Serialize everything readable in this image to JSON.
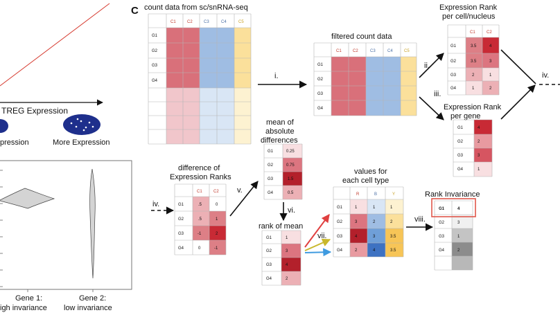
{
  "panel_letter": "C",
  "left_partial": {
    "axis_label": "TREG Expression",
    "less_label": "pression",
    "more_label": "More Expression",
    "gene1_label": "Gene 1:",
    "gene1_sub": "igh invariance",
    "gene2_label": "Gene 2:",
    "gene2_sub": "low invariance"
  },
  "colors": {
    "red": "#d9707a",
    "red_light": "#f1c6cb",
    "blue": "#9fbde3",
    "blue_light": "#d9e6f5",
    "yellow": "#fbe09b",
    "yellow_light": "#fdf2d1",
    "ellipse": "#1e2f8c",
    "violin": "#d4d4d4"
  },
  "count_data": {
    "title": "count data from sc/snRNA-seq",
    "columns": [
      "C1",
      "C2",
      "C3",
      "C4",
      "C5"
    ],
    "rows": [
      "G1",
      "G2",
      "G3",
      "G4"
    ]
  },
  "filtered": {
    "title": "filtered count data",
    "columns": [
      "C1",
      "C2",
      "C3",
      "C4",
      "C5"
    ],
    "rows": [
      "G1",
      "G2",
      "G3",
      "G4"
    ]
  },
  "rank_cell": {
    "title1": "Expression Rank",
    "title2": "per cell/nucleus",
    "columns": [
      "C1",
      "C2"
    ],
    "rows": [
      {
        "gene": "G1",
        "values": [
          "3.5",
          "4"
        ]
      },
      {
        "gene": "G2",
        "values": [
          "3.5",
          "3"
        ]
      },
      {
        "gene": "G3",
        "values": [
          "2",
          "1"
        ]
      },
      {
        "gene": "G4",
        "values": [
          "1",
          "2"
        ]
      }
    ]
  },
  "rank_gene": {
    "title1": "Expression Rank",
    "title2": "per gene",
    "rows": [
      {
        "gene": "G1",
        "value": "4"
      },
      {
        "gene": "G2",
        "value": "2"
      },
      {
        "gene": "G3",
        "value": "3"
      },
      {
        "gene": "G4",
        "value": "1"
      }
    ]
  },
  "diff": {
    "title1": "difference of",
    "title2": "Expression Ranks",
    "columns": [
      "C1",
      "C2"
    ],
    "rows": [
      {
        "gene": "G1",
        "values": [
          ".5",
          "0"
        ]
      },
      {
        "gene": "G2",
        "values": [
          ".5",
          "1"
        ]
      },
      {
        "gene": "G3",
        "values": [
          "-1",
          "2"
        ]
      },
      {
        "gene": "G4",
        "values": [
          "0",
          "-1"
        ]
      }
    ]
  },
  "mean_abs": {
    "title1": "mean of",
    "title2": "absolute",
    "title3": "differences",
    "rows": [
      {
        "gene": "G1",
        "value": "0.25"
      },
      {
        "gene": "G2",
        "value": "0.75"
      },
      {
        "gene": "G3",
        "value": "1.5"
      },
      {
        "gene": "G4",
        "value": "0.5"
      }
    ]
  },
  "rank_mean": {
    "title": "rank of mean",
    "rows": [
      {
        "gene": "G1",
        "value": "1"
      },
      {
        "gene": "G2",
        "value": "3"
      },
      {
        "gene": "G3",
        "value": "4"
      },
      {
        "gene": "G4",
        "value": "2"
      }
    ]
  },
  "values_cell_type": {
    "title1": "values for",
    "title2": "each cell type",
    "columns": [
      "R",
      "B",
      "Y"
    ],
    "rows": [
      {
        "gene": "G1",
        "values": [
          "1",
          "1",
          "1"
        ]
      },
      {
        "gene": "G2",
        "values": [
          "3",
          "2",
          "2"
        ]
      },
      {
        "gene": "G3",
        "values": [
          "4",
          "3",
          "3.5"
        ]
      },
      {
        "gene": "G4",
        "values": [
          "2",
          "4",
          "3.5"
        ]
      }
    ]
  },
  "rank_invariance": {
    "title": "Rank Invariance",
    "rows": [
      {
        "gene": "G1",
        "value": "4"
      },
      {
        "gene": "G2",
        "value": "3"
      },
      {
        "gene": "G3",
        "value": "1"
      },
      {
        "gene": "G4",
        "value": "2"
      }
    ]
  },
  "steps": {
    "i": "i.",
    "ii": "ii.",
    "iii": "iii.",
    "iv": "iv.",
    "iv_in": "iv.",
    "v": "v.",
    "vi": "vi.",
    "vii": "vii.",
    "viii": "viii."
  }
}
